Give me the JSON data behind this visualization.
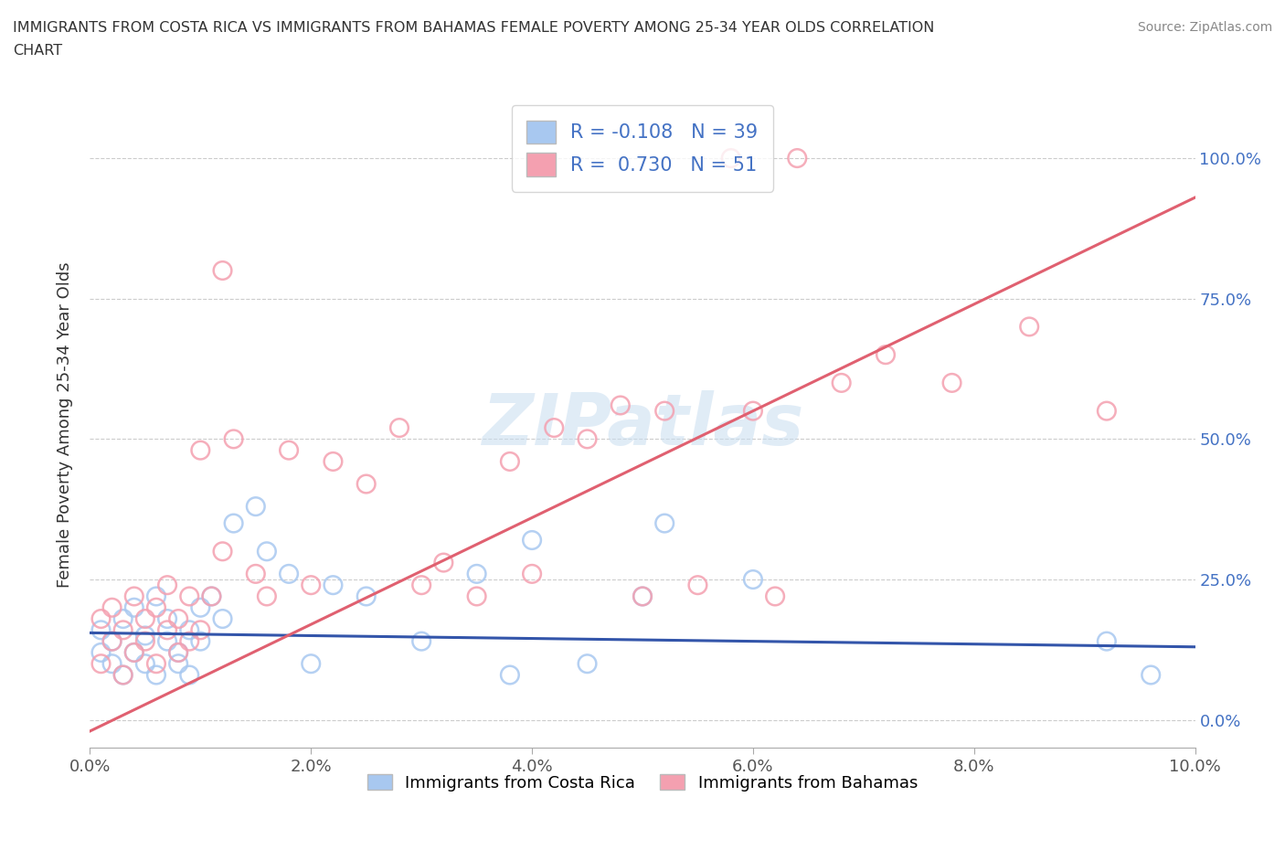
{
  "title": "IMMIGRANTS FROM COSTA RICA VS IMMIGRANTS FROM BAHAMAS FEMALE POVERTY AMONG 25-34 YEAR OLDS CORRELATION\nCHART",
  "source": "Source: ZipAtlas.com",
  "ylabel": "Female Poverty Among 25-34 Year Olds",
  "xlim": [
    0.0,
    0.1
  ],
  "ylim": [
    -0.05,
    1.1
  ],
  "yticks": [
    0.0,
    0.25,
    0.5,
    0.75,
    1.0
  ],
  "yticklabels_right": [
    "0.0%",
    "25.0%",
    "50.0%",
    "75.0%",
    "100.0%"
  ],
  "xticks": [
    0.0,
    0.02,
    0.04,
    0.06,
    0.08,
    0.1
  ],
  "xticklabels": [
    "0.0%",
    "2.0%",
    "4.0%",
    "6.0%",
    "8.0%",
    "10.0%"
  ],
  "costa_rica_color": "#a8c8f0",
  "bahamas_color": "#f4a0b0",
  "costa_rica_line_color": "#3355aa",
  "bahamas_line_color": "#e06070",
  "R_costa_rica": -0.108,
  "N_costa_rica": 39,
  "R_bahamas": 0.73,
  "N_bahamas": 51,
  "legend_label_1": "Immigrants from Costa Rica",
  "legend_label_2": "Immigrants from Bahamas",
  "watermark": "ZIPatlas",
  "costa_rica_x": [
    0.001,
    0.001,
    0.002,
    0.002,
    0.003,
    0.003,
    0.004,
    0.004,
    0.005,
    0.005,
    0.006,
    0.006,
    0.007,
    0.007,
    0.008,
    0.008,
    0.009,
    0.009,
    0.01,
    0.01,
    0.011,
    0.012,
    0.013,
    0.015,
    0.016,
    0.018,
    0.02,
    0.022,
    0.025,
    0.03,
    0.035,
    0.038,
    0.04,
    0.045,
    0.05,
    0.052,
    0.06,
    0.092,
    0.096
  ],
  "costa_rica_y": [
    0.12,
    0.16,
    0.1,
    0.14,
    0.08,
    0.18,
    0.12,
    0.2,
    0.1,
    0.15,
    0.08,
    0.22,
    0.14,
    0.18,
    0.1,
    0.12,
    0.16,
    0.08,
    0.2,
    0.14,
    0.22,
    0.18,
    0.35,
    0.38,
    0.3,
    0.26,
    0.1,
    0.24,
    0.22,
    0.14,
    0.26,
    0.08,
    0.32,
    0.1,
    0.22,
    0.35,
    0.25,
    0.14,
    0.08
  ],
  "bahamas_x": [
    0.001,
    0.001,
    0.002,
    0.002,
    0.003,
    0.003,
    0.004,
    0.004,
    0.005,
    0.005,
    0.006,
    0.006,
    0.007,
    0.007,
    0.008,
    0.008,
    0.009,
    0.009,
    0.01,
    0.01,
    0.011,
    0.012,
    0.012,
    0.013,
    0.015,
    0.016,
    0.018,
    0.02,
    0.022,
    0.025,
    0.028,
    0.03,
    0.032,
    0.035,
    0.038,
    0.04,
    0.042,
    0.045,
    0.048,
    0.05,
    0.052,
    0.055,
    0.058,
    0.06,
    0.062,
    0.064,
    0.068,
    0.072,
    0.078,
    0.085,
    0.092
  ],
  "bahamas_y": [
    0.1,
    0.18,
    0.14,
    0.2,
    0.08,
    0.16,
    0.12,
    0.22,
    0.18,
    0.14,
    0.1,
    0.2,
    0.16,
    0.24,
    0.12,
    0.18,
    0.14,
    0.22,
    0.16,
    0.48,
    0.22,
    0.8,
    0.3,
    0.5,
    0.26,
    0.22,
    0.48,
    0.24,
    0.46,
    0.42,
    0.52,
    0.24,
    0.28,
    0.22,
    0.46,
    0.26,
    0.52,
    0.5,
    0.56,
    0.22,
    0.55,
    0.24,
    1.0,
    0.55,
    0.22,
    1.0,
    0.6,
    0.65,
    0.6,
    0.7,
    0.55
  ]
}
